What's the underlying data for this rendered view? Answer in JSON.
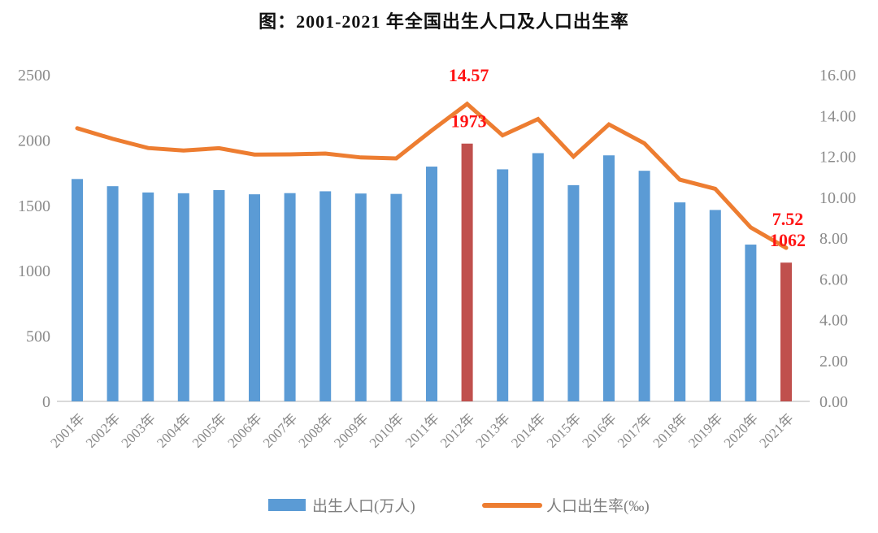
{
  "title": "图：2001-2021 年全国出生人口及人口出生率",
  "legend": {
    "bar_label": "出生人口(万人)",
    "line_label": "人口出生率(‰)"
  },
  "colors": {
    "bar_blue": "#5B9BD5",
    "bar_highlight_red": "#C0504D",
    "line_orange": "#ED7D31",
    "annotation_red": "#FF1414",
    "axis_text_gray": "#8a8a8a",
    "baseline_gray": "#D9D9D9"
  },
  "chart_data": {
    "type": "bar",
    "subtype": "combo-bar-line-dual-axis",
    "title": "图：2001-2021 年全国出生人口及人口出生率",
    "categories": [
      "2001年",
      "2002年",
      "2003年",
      "2004年",
      "2005年",
      "2006年",
      "2007年",
      "2008年",
      "2009年",
      "2010年",
      "2011年",
      "2012年",
      "2013年",
      "2014年",
      "2015年",
      "2016年",
      "2017年",
      "2018年",
      "2019年",
      "2020年",
      "2021年"
    ],
    "series": [
      {
        "name": "出生人口(万人)",
        "type": "bar",
        "axis": "left",
        "values": [
          1702,
          1647,
          1599,
          1593,
          1617,
          1585,
          1594,
          1608,
          1591,
          1588,
          1797,
          1973,
          1776,
          1900,
          1655,
          1883,
          1765,
          1523,
          1465,
          1200,
          1062
        ],
        "highlight_indices": [
          11,
          20
        ]
      },
      {
        "name": "人口出生率(‰)",
        "type": "line",
        "axis": "right",
        "values": [
          13.38,
          12.86,
          12.41,
          12.29,
          12.4,
          12.09,
          12.1,
          12.14,
          11.95,
          11.9,
          13.27,
          14.57,
          13.03,
          13.83,
          11.99,
          13.57,
          12.64,
          10.86,
          10.41,
          8.52,
          7.52
        ]
      }
    ],
    "left_axis": {
      "min": 0,
      "max": 2500,
      "ticks": [
        "2500",
        "2000",
        "1500",
        "1000",
        "500",
        "0"
      ]
    },
    "right_axis": {
      "min": 0,
      "max": 16,
      "ticks": [
        "16.00",
        "14.00",
        "12.00",
        "10.00",
        "8.00",
        "6.00",
        "4.00",
        "2.00",
        "0.00"
      ]
    },
    "annotations": [
      {
        "category": "2012年",
        "line_label": "14.57",
        "bar_label": "1973"
      },
      {
        "category": "2021年",
        "line_label": "7.52",
        "bar_label": "1062"
      }
    ],
    "grid": false,
    "legend_position": "bottom"
  }
}
